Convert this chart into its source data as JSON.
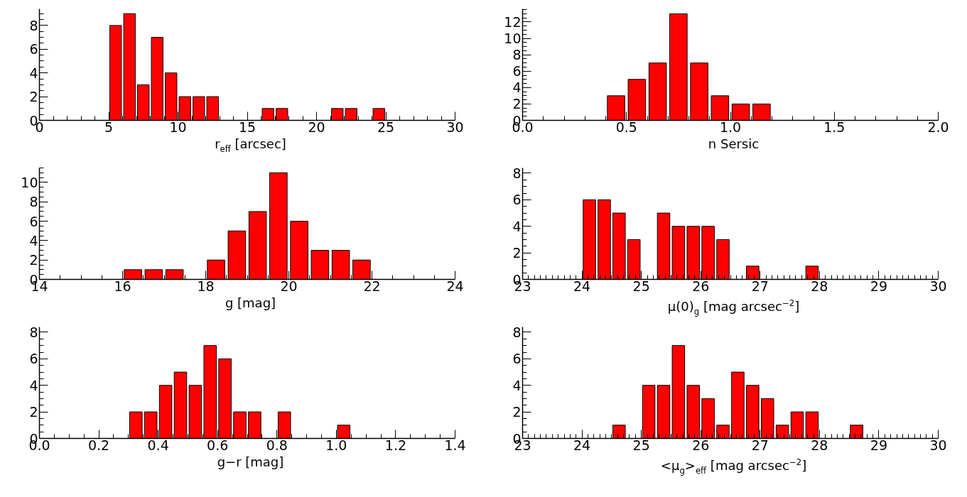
{
  "chart_data": [
    {
      "type": "histogram",
      "xlabel": "r$_{eff}$ [arcsec]",
      "color": "#ff0000",
      "bins": [
        5,
        6,
        7,
        8,
        9,
        10,
        11,
        12,
        13,
        14,
        15,
        16,
        17,
        18,
        19,
        20,
        21,
        22,
        23,
        24,
        25
      ],
      "values": [
        8,
        9,
        3,
        7,
        4,
        2,
        2,
        2,
        0,
        0,
        0,
        1,
        1,
        0,
        0,
        0,
        1,
        1,
        0,
        1
      ],
      "xlim": [
        0,
        30
      ],
      "xticks": [
        0,
        5,
        10,
        15,
        20,
        25,
        30
      ],
      "ylim": [
        0,
        9.4
      ],
      "yticks": [
        0,
        2,
        4,
        6,
        8
      ]
    },
    {
      "type": "histogram",
      "xlabel": "n Sersic",
      "color": "#ff0000",
      "bins": [
        0.4,
        0.5,
        0.6,
        0.7,
        0.8,
        0.9,
        1.0,
        1.1,
        1.2
      ],
      "values": [
        3,
        5,
        7,
        13,
        7,
        3,
        2,
        2
      ],
      "xlim": [
        0,
        2
      ],
      "xticks": [
        {
          "value": 0,
          "label": "0.0"
        },
        0.5,
        {
          "value": 1,
          "label": "1.0"
        },
        1.5,
        {
          "value": 2,
          "label": "2.0"
        }
      ],
      "ylim": [
        0,
        13.6
      ],
      "yticks": [
        0,
        2,
        4,
        6,
        8,
        10,
        12
      ]
    },
    {
      "type": "histogram",
      "xlabel": "g [mag]",
      "color": "#ff0000",
      "bins": [
        16,
        16.5,
        17,
        17.5,
        18,
        18.5,
        19,
        19.5,
        20,
        20.5,
        21,
        21.5,
        22
      ],
      "values": [
        1,
        1,
        1,
        0,
        2,
        5,
        7,
        11,
        6,
        3,
        3,
        2
      ],
      "xlim": [
        14,
        24
      ],
      "xticks": [
        14,
        16,
        18,
        20,
        22,
        24
      ],
      "ylim": [
        0,
        11.5
      ],
      "yticks": [
        0,
        2,
        4,
        6,
        8,
        10
      ]
    },
    {
      "type": "histogram",
      "xlabel": "μ(0)$_{g}$ [mag arcsec$^{−2}$]",
      "color": "#ff0000",
      "bins": [
        24,
        24.25,
        24.5,
        24.75,
        25,
        25.25,
        25.5,
        25.75,
        26,
        26.25,
        26.5,
        26.75,
        27,
        27.25,
        27.5,
        27.75,
        28
      ],
      "values": [
        6,
        6,
        5,
        3,
        0,
        5,
        4,
        4,
        4,
        3,
        0,
        1,
        0,
        0,
        0,
        1
      ],
      "xlim": [
        23,
        30
      ],
      "xticks": [
        23,
        24,
        25,
        26,
        27,
        28,
        29,
        30
      ],
      "ylim": [
        0,
        8.4
      ],
      "yticks": [
        0,
        2,
        4,
        6,
        8
      ]
    },
    {
      "type": "histogram",
      "xlabel": "g−r [mag]",
      "color": "#ff0000",
      "bins": [
        0.3,
        0.35,
        0.4,
        0.45,
        0.5,
        0.55,
        0.6,
        0.65,
        0.7,
        0.75,
        0.8,
        0.85,
        0.9,
        0.95,
        1.0,
        1.05
      ],
      "values": [
        2,
        2,
        4,
        5,
        4,
        7,
        6,
        2,
        2,
        0,
        2,
        0,
        0,
        0,
        1
      ],
      "xlim": [
        0,
        1.4
      ],
      "xticks": [
        {
          "value": 0,
          "label": "0.0"
        },
        0.2,
        0.4,
        0.6,
        0.8,
        {
          "value": 1,
          "label": "1.0"
        },
        1.2,
        1.4
      ],
      "ylim": [
        0,
        8.4
      ],
      "yticks": [
        0,
        2,
        4,
        6,
        8
      ]
    },
    {
      "type": "histogram",
      "xlabel": "<μ$_{g}$>$_{eff}$ [mag arcsec$^{−2}$]",
      "color": "#ff0000",
      "bins": [
        24.5,
        24.75,
        25,
        25.25,
        25.5,
        25.75,
        26,
        26.25,
        26.5,
        26.75,
        27,
        27.25,
        27.5,
        27.75,
        28,
        28.25,
        28.5,
        28.75
      ],
      "values": [
        1,
        0,
        4,
        4,
        7,
        4,
        3,
        1,
        5,
        4,
        3,
        1,
        2,
        2,
        0,
        0,
        1
      ],
      "xlim": [
        23,
        30
      ],
      "xticks": [
        23,
        24,
        25,
        26,
        27,
        28,
        29,
        30
      ],
      "ylim": [
        0,
        8.4
      ],
      "yticks": [
        0,
        2,
        4,
        6,
        8
      ]
    }
  ]
}
